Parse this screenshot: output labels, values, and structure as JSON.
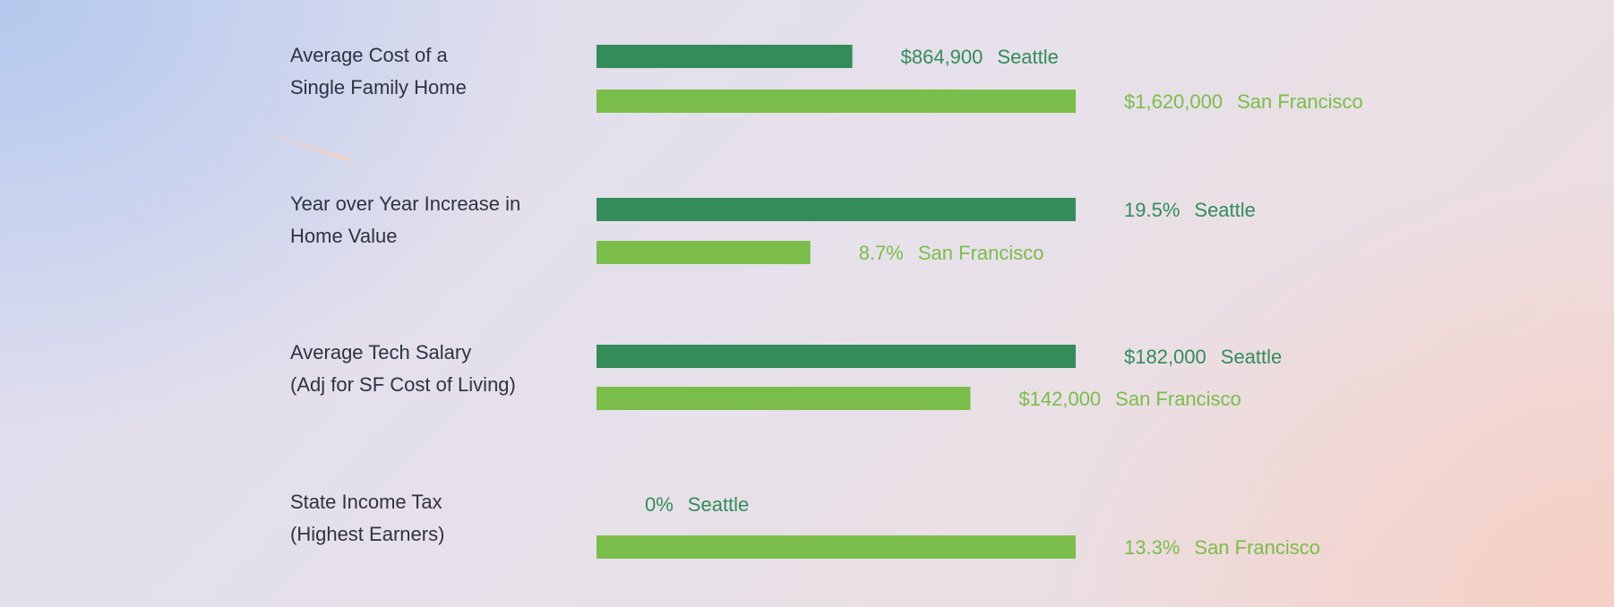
{
  "chart_data": {
    "type": "bar",
    "orientation": "horizontal",
    "colors": {
      "Seattle": "#338c5a",
      "San Francisco": "#7abd4a"
    },
    "groups": [
      {
        "label_lines": [
          "Average Cost of a",
          "Single Family Home"
        ],
        "bars": [
          {
            "city": "Seattle",
            "value": 864900,
            "label": "$864,900"
          },
          {
            "city": "San Francisco",
            "value": 1620000,
            "label": "$1,620,000"
          }
        ]
      },
      {
        "label_lines": [
          "Year over Year Increase in",
          "Home Value"
        ],
        "bars": [
          {
            "city": "Seattle",
            "value": 19.5,
            "label": "19.5%"
          },
          {
            "city": "San Francisco",
            "value": 8.7,
            "label": "8.7%"
          }
        ]
      },
      {
        "label_lines": [
          "Average Tech Salary",
          "(Adj for SF Cost of Living)"
        ],
        "bars": [
          {
            "city": "Seattle",
            "value": 182000,
            "label": "$182,000"
          },
          {
            "city": "San Francisco",
            "value": 142000,
            "label": "$142,000"
          }
        ]
      },
      {
        "label_lines": [
          "State Income Tax",
          "(Highest Earners)"
        ],
        "bars": [
          {
            "city": "Seattle",
            "value": 0,
            "label": "0%"
          },
          {
            "city": "San Francisco",
            "value": 13.3,
            "label": "13.3%"
          }
        ]
      }
    ]
  }
}
